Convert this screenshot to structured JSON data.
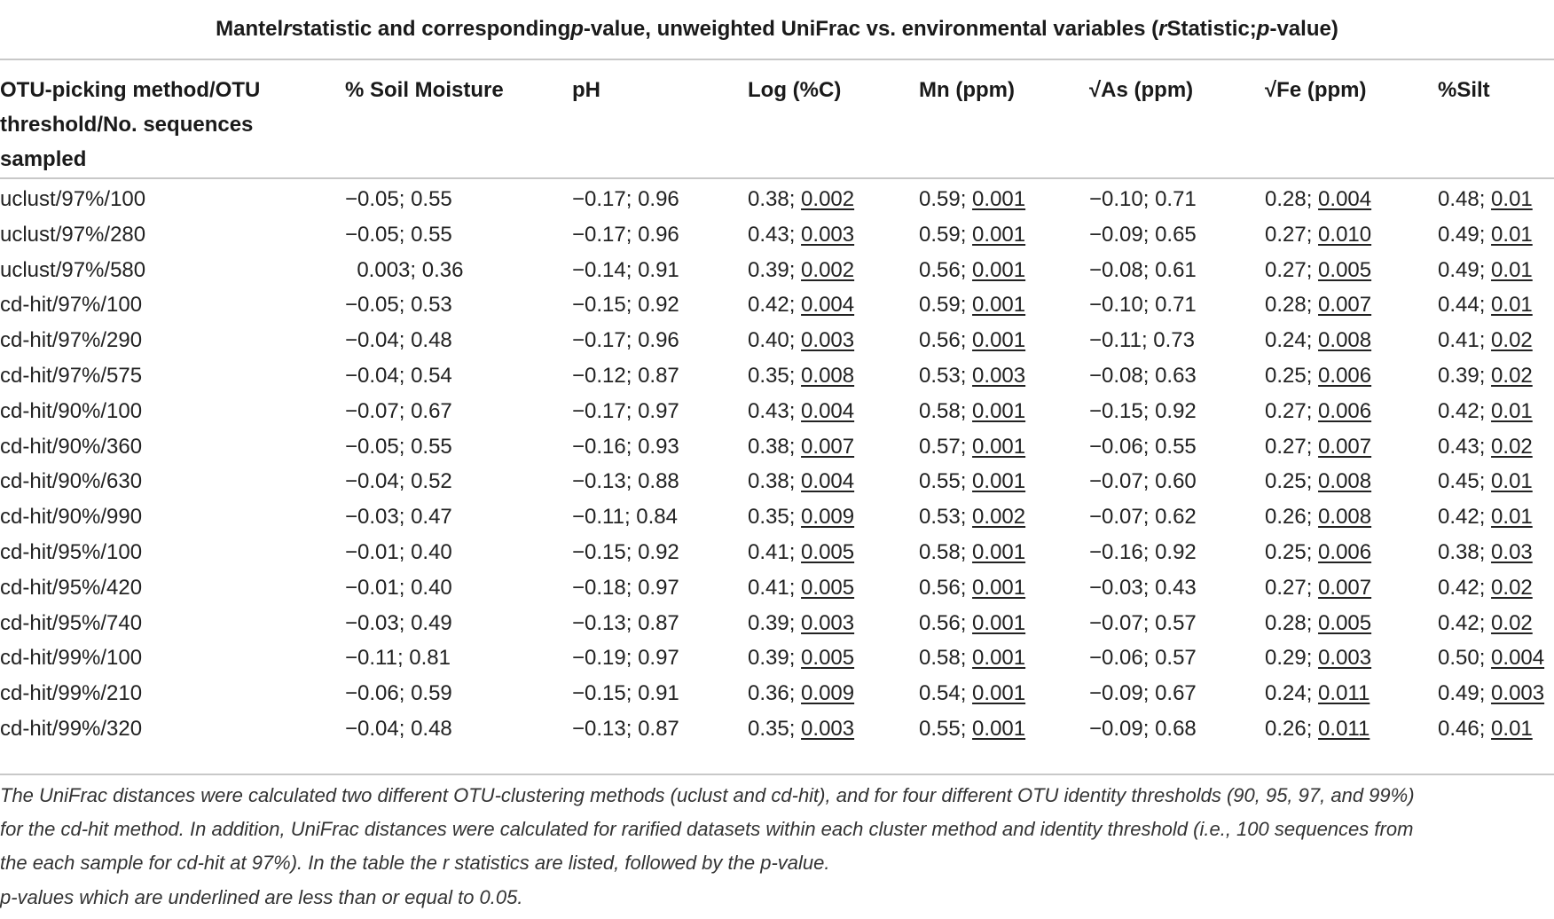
{
  "caption": {
    "part1": "Mantel ",
    "r1": "r",
    "part2": " statistic and corresponding ",
    "p1": "p",
    "part3": "-value, unweighted UniFrac vs. environmental variables (",
    "r2": "r",
    "part4": " Statistic; ",
    "p2": "p",
    "part5": "-value)"
  },
  "columns": [
    "OTU-picking method/OTU threshold/No. sequences sampled",
    "% Soil Moisture",
    "pH",
    "Log (%C)",
    "Mn (ppm)",
    "√As (ppm)",
    "√Fe (ppm)",
    "%Silt"
  ],
  "rows": [
    {
      "label": "uclust/97%/100",
      "cells": [
        {
          "r": "−0.05; ",
          "p": "0.55",
          "u": false
        },
        {
          "r": "−0.17; ",
          "p": "0.96",
          "u": false
        },
        {
          "r": "0.38; ",
          "p": "0.002",
          "u": true
        },
        {
          "r": "0.59; ",
          "p": "0.001",
          "u": true
        },
        {
          "r": "−0.10; ",
          "p": "0.71",
          "u": false
        },
        {
          "r": "0.28; ",
          "p": "0.004",
          "u": true
        },
        {
          "r": "0.48; ",
          "p": "0.01",
          "u": true
        }
      ]
    },
    {
      "label": "uclust/97%/280",
      "cells": [
        {
          "r": "−0.05; ",
          "p": "0.55",
          "u": false
        },
        {
          "r": "−0.17; ",
          "p": "0.96",
          "u": false
        },
        {
          "r": "0.43; ",
          "p": "0.003",
          "u": true
        },
        {
          "r": "0.59; ",
          "p": "0.001",
          "u": true
        },
        {
          "r": "−0.09; ",
          "p": "0.65",
          "u": false
        },
        {
          "r": "0.27; ",
          "p": "0.010",
          "u": true
        },
        {
          "r": "0.49; ",
          "p": "0.01",
          "u": true
        }
      ]
    },
    {
      "label": "uclust/97%/580",
      "cells": [
        {
          "r": "  0.003; ",
          "p": "0.36",
          "u": false
        },
        {
          "r": "−0.14; ",
          "p": "0.91",
          "u": false
        },
        {
          "r": "0.39; ",
          "p": "0.002",
          "u": true
        },
        {
          "r": "0.56; ",
          "p": "0.001",
          "u": true
        },
        {
          "r": "−0.08; ",
          "p": "0.61",
          "u": false
        },
        {
          "r": "0.27; ",
          "p": "0.005",
          "u": true
        },
        {
          "r": "0.49; ",
          "p": "0.01",
          "u": true
        }
      ]
    },
    {
      "label": "cd-hit/97%/100",
      "cells": [
        {
          "r": "−0.05; ",
          "p": "0.53",
          "u": false
        },
        {
          "r": "−0.15; ",
          "p": "0.92",
          "u": false
        },
        {
          "r": "0.42; ",
          "p": "0.004",
          "u": true
        },
        {
          "r": "0.59; ",
          "p": "0.001",
          "u": true
        },
        {
          "r": "−0.10; ",
          "p": "0.71",
          "u": false
        },
        {
          "r": "0.28; ",
          "p": "0.007",
          "u": true
        },
        {
          "r": "0.44; ",
          "p": "0.01",
          "u": true
        }
      ]
    },
    {
      "label": "cd-hit/97%/290",
      "cells": [
        {
          "r": "−0.04; ",
          "p": "0.48",
          "u": false
        },
        {
          "r": "−0.17; ",
          "p": "0.96",
          "u": false
        },
        {
          "r": "0.40; ",
          "p": "0.003",
          "u": true
        },
        {
          "r": "0.56; ",
          "p": "0.001",
          "u": true
        },
        {
          "r": "−0.11; ",
          "p": "0.73",
          "u": false
        },
        {
          "r": "0.24; ",
          "p": "0.008",
          "u": true
        },
        {
          "r": "0.41; ",
          "p": "0.02",
          "u": true
        }
      ]
    },
    {
      "label": "cd-hit/97%/575",
      "cells": [
        {
          "r": "−0.04; ",
          "p": "0.54",
          "u": false
        },
        {
          "r": "−0.12; ",
          "p": "0.87",
          "u": false
        },
        {
          "r": "0.35; ",
          "p": "0.008",
          "u": true
        },
        {
          "r": "0.53; ",
          "p": "0.003",
          "u": true
        },
        {
          "r": "−0.08; ",
          "p": "0.63",
          "u": false
        },
        {
          "r": "0.25; ",
          "p": "0.006",
          "u": true
        },
        {
          "r": "0.39; ",
          "p": "0.02",
          "u": true
        }
      ]
    },
    {
      "label": "cd-hit/90%/100",
      "cells": [
        {
          "r": "−0.07; ",
          "p": "0.67",
          "u": false
        },
        {
          "r": "−0.17; ",
          "p": "0.97",
          "u": false
        },
        {
          "r": "0.43; ",
          "p": "0.004",
          "u": true
        },
        {
          "r": "0.58; ",
          "p": "0.001",
          "u": true
        },
        {
          "r": "−0.15; ",
          "p": "0.92",
          "u": false
        },
        {
          "r": "0.27; ",
          "p": "0.006",
          "u": true
        },
        {
          "r": "0.42; ",
          "p": "0.01",
          "u": true
        }
      ]
    },
    {
      "label": "cd-hit/90%/360",
      "cells": [
        {
          "r": "−0.05; ",
          "p": "0.55",
          "u": false
        },
        {
          "r": "−0.16; ",
          "p": "0.93",
          "u": false
        },
        {
          "r": "0.38; ",
          "p": "0.007",
          "u": true
        },
        {
          "r": "0.57; ",
          "p": "0.001",
          "u": true
        },
        {
          "r": "−0.06; ",
          "p": "0.55",
          "u": false
        },
        {
          "r": "0.27; ",
          "p": "0.007",
          "u": true
        },
        {
          "r": "0.43; ",
          "p": "0.02",
          "u": true
        }
      ]
    },
    {
      "label": "cd-hit/90%/630",
      "cells": [
        {
          "r": "−0.04; ",
          "p": "0.52",
          "u": false
        },
        {
          "r": "−0.13; ",
          "p": "0.88",
          "u": false
        },
        {
          "r": "0.38; ",
          "p": "0.004",
          "u": true
        },
        {
          "r": "0.55; ",
          "p": "0.001",
          "u": true
        },
        {
          "r": "−0.07; ",
          "p": "0.60",
          "u": false
        },
        {
          "r": "0.25; ",
          "p": "0.008",
          "u": true
        },
        {
          "r": "0.45; ",
          "p": "0.01",
          "u": true
        }
      ]
    },
    {
      "label": "cd-hit/90%/990",
      "cells": [
        {
          "r": "−0.03; ",
          "p": "0.47",
          "u": false
        },
        {
          "r": "−0.11; ",
          "p": "0.84",
          "u": false
        },
        {
          "r": "0.35; ",
          "p": "0.009",
          "u": true
        },
        {
          "r": "0.53; ",
          "p": "0.002",
          "u": true
        },
        {
          "r": "−0.07; ",
          "p": "0.62",
          "u": false
        },
        {
          "r": "0.26; ",
          "p": "0.008",
          "u": true
        },
        {
          "r": "0.42; ",
          "p": "0.01",
          "u": true
        }
      ]
    },
    {
      "label": "cd-hit/95%/100",
      "cells": [
        {
          "r": "−0.01; ",
          "p": "0.40",
          "u": false
        },
        {
          "r": "−0.15; ",
          "p": "0.92",
          "u": false
        },
        {
          "r": "0.41; ",
          "p": "0.005",
          "u": true
        },
        {
          "r": "0.58; ",
          "p": "0.001",
          "u": true
        },
        {
          "r": "−0.16; ",
          "p": "0.92",
          "u": false
        },
        {
          "r": "0.25; ",
          "p": "0.006",
          "u": true
        },
        {
          "r": "0.38; ",
          "p": "0.03",
          "u": true
        }
      ]
    },
    {
      "label": "cd-hit/95%/420",
      "cells": [
        {
          "r": "−0.01; ",
          "p": "0.40",
          "u": false
        },
        {
          "r": "−0.18; ",
          "p": "0.97",
          "u": false
        },
        {
          "r": "0.41; ",
          "p": "0.005",
          "u": true
        },
        {
          "r": "0.56; ",
          "p": "0.001",
          "u": true
        },
        {
          "r": "−0.03; ",
          "p": "0.43",
          "u": false
        },
        {
          "r": "0.27; ",
          "p": "0.007",
          "u": true
        },
        {
          "r": "0.42; ",
          "p": "0.02",
          "u": true
        }
      ]
    },
    {
      "label": "cd-hit/95%/740",
      "cells": [
        {
          "r": "−0.03; ",
          "p": "0.49",
          "u": false
        },
        {
          "r": "−0.13; ",
          "p": "0.87",
          "u": false
        },
        {
          "r": "0.39; ",
          "p": "0.003",
          "u": true
        },
        {
          "r": "0.56; ",
          "p": "0.001",
          "u": true
        },
        {
          "r": "−0.07; ",
          "p": "0.57",
          "u": false
        },
        {
          "r": "0.28; ",
          "p": "0.005",
          "u": true
        },
        {
          "r": "0.42; ",
          "p": "0.02",
          "u": true
        }
      ]
    },
    {
      "label": "cd-hit/99%/100",
      "cells": [
        {
          "r": "−0.11; ",
          "p": "0.81",
          "u": false
        },
        {
          "r": "−0.19; ",
          "p": "0.97",
          "u": false
        },
        {
          "r": "0.39; ",
          "p": "0.005",
          "u": true
        },
        {
          "r": "0.58; ",
          "p": "0.001",
          "u": true
        },
        {
          "r": "−0.06; ",
          "p": "0.57",
          "u": false
        },
        {
          "r": "0.29; ",
          "p": "0.003",
          "u": true
        },
        {
          "r": "0.50; ",
          "p": "0.004",
          "u": true
        }
      ]
    },
    {
      "label": "cd-hit/99%/210",
      "cells": [
        {
          "r": "−0.06; ",
          "p": "0.59",
          "u": false
        },
        {
          "r": "−0.15; ",
          "p": "0.91",
          "u": false
        },
        {
          "r": "0.36; ",
          "p": "0.009",
          "u": true
        },
        {
          "r": "0.54; ",
          "p": "0.001",
          "u": true
        },
        {
          "r": "−0.09; ",
          "p": "0.67",
          "u": false
        },
        {
          "r": "0.24; ",
          "p": "0.011",
          "u": true
        },
        {
          "r": "0.49; ",
          "p": "0.003",
          "u": true
        }
      ]
    },
    {
      "label": "cd-hit/99%/320",
      "cells": [
        {
          "r": "−0.04; ",
          "p": "0.48",
          "u": false
        },
        {
          "r": "−0.13; ",
          "p": "0.87",
          "u": false
        },
        {
          "r": "0.35; ",
          "p": "0.003",
          "u": true
        },
        {
          "r": "0.55; ",
          "p": "0.001",
          "u": true
        },
        {
          "r": "−0.09; ",
          "p": "0.68",
          "u": false
        },
        {
          "r": "0.26; ",
          "p": "0.011",
          "u": true
        },
        {
          "r": "0.46; ",
          "p": "0.01",
          "u": true
        }
      ]
    }
  ],
  "footnotes": [
    "The UniFrac distances were calculated two different OTU-clustering methods (uclust and cd-hit), and for four different OTU identity thresholds (90, 95, 97, and 99%)",
    "for the cd-hit method. In addition, UniFrac distances were calculated for rarified datasets within each cluster method and identity threshold (i.e., 100 sequences from",
    "the each sample for cd-hit at 97%). In the table the r statistics are listed, followed by the p-value.",
    "p-values which are underlined are less than or equal to 0.05."
  ]
}
